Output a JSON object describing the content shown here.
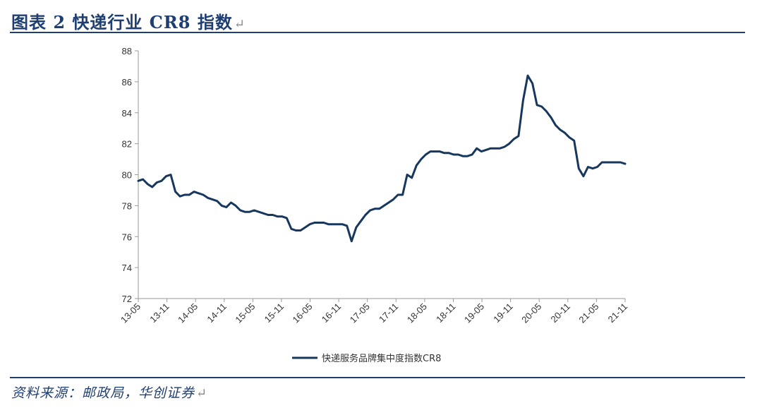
{
  "header": {
    "title": "图表 2 快递行业 CR8 指数",
    "return_mark": "↵"
  },
  "footer": {
    "source": "资料来源：邮政局，华创证券",
    "return_mark": "↵"
  },
  "colors": {
    "accent": "#1f3f73",
    "line": "#17375e"
  },
  "chart_data": {
    "type": "line",
    "title": "",
    "xlabel": "",
    "ylabel": "",
    "ylim": [
      72,
      88
    ],
    "yticks": [
      72,
      74,
      76,
      78,
      80,
      82,
      84,
      86,
      88
    ],
    "x_tick_labels": [
      "13-05",
      "13-11",
      "14-05",
      "14-11",
      "15-05",
      "15-11",
      "16-05",
      "16-11",
      "17-05",
      "17-11",
      "18-05",
      "18-11",
      "19-05",
      "19-11",
      "20-05",
      "20-11",
      "21-05",
      "21-11"
    ],
    "x_start": "2013-05",
    "x_end": "2021-11",
    "legend": "bottom-center",
    "grid": false,
    "series": [
      {
        "name": "快递服务品牌集中度指数CR8",
        "values": [
          79.6,
          79.7,
          79.4,
          79.2,
          79.5,
          79.6,
          79.9,
          80.0,
          78.9,
          78.6,
          78.7,
          78.7,
          78.9,
          78.8,
          78.7,
          78.5,
          78.4,
          78.3,
          78.0,
          77.9,
          78.2,
          78.0,
          77.7,
          77.6,
          77.6,
          77.7,
          77.6,
          77.5,
          77.4,
          77.4,
          77.3,
          77.3,
          77.2,
          76.5,
          76.4,
          76.4,
          76.6,
          76.8,
          76.9,
          76.9,
          76.9,
          76.8,
          76.8,
          76.8,
          76.8,
          76.7,
          75.7,
          76.6,
          77.0,
          77.4,
          77.7,
          77.8,
          77.8,
          78.0,
          78.2,
          78.4,
          78.7,
          78.7,
          80.0,
          79.8,
          80.6,
          81.0,
          81.3,
          81.5,
          81.5,
          81.5,
          81.4,
          81.4,
          81.3,
          81.3,
          81.2,
          81.2,
          81.3,
          81.7,
          81.5,
          81.6,
          81.7,
          81.7,
          81.7,
          81.8,
          82.0,
          82.3,
          82.5,
          84.8,
          86.4,
          85.9,
          84.5,
          84.4,
          84.1,
          83.7,
          83.2,
          82.9,
          82.7,
          82.4,
          82.2,
          80.4,
          79.9,
          80.5,
          80.4,
          80.5,
          80.8,
          80.8,
          80.8,
          80.8,
          80.8,
          80.7
        ]
      }
    ]
  }
}
